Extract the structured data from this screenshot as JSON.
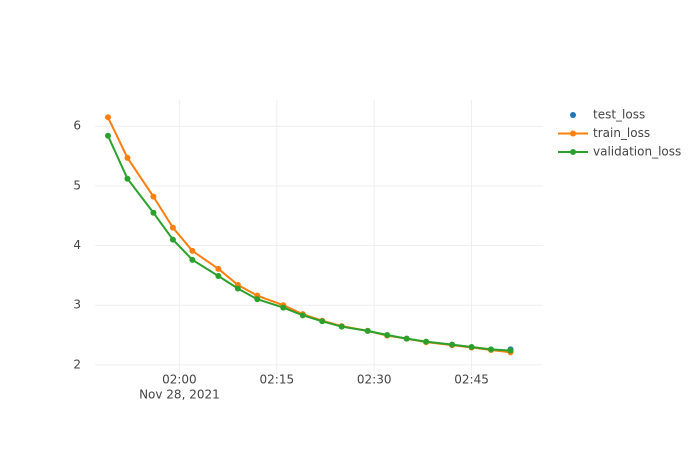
{
  "chart_data": {
    "type": "line",
    "x": [
      "2021-11-28 01:49",
      "2021-11-28 01:52",
      "2021-11-28 01:56",
      "2021-11-28 01:59",
      "2021-11-28 02:02",
      "2021-11-28 02:06",
      "2021-11-28 02:09",
      "2021-11-28 02:12",
      "2021-11-28 02:16",
      "2021-11-28 02:19",
      "2021-11-28 02:22",
      "2021-11-28 02:25",
      "2021-11-28 02:29",
      "2021-11-28 02:32",
      "2021-11-28 02:35",
      "2021-11-28 02:38",
      "2021-11-28 02:42",
      "2021-11-28 02:45",
      "2021-11-28 02:48",
      "2021-11-28 02:51"
    ],
    "series": [
      {
        "name": "test_loss",
        "color": "#1f77b4",
        "mode": "markers",
        "x": [
          "2021-11-28 02:51"
        ],
        "values": [
          2.26
        ]
      },
      {
        "name": "train_loss",
        "color": "#ff7f0e",
        "mode": "lines+markers",
        "values": [
          6.15,
          5.47,
          4.82,
          4.3,
          3.91,
          3.61,
          3.34,
          3.16,
          3.0,
          2.85,
          2.74,
          2.65,
          2.57,
          2.49,
          2.44,
          2.38,
          2.33,
          2.29,
          2.25,
          2.21
        ]
      },
      {
        "name": "validation_loss",
        "color": "#2ca02c",
        "mode": "lines+markers",
        "values": [
          5.84,
          5.12,
          4.55,
          4.1,
          3.76,
          3.49,
          3.28,
          3.1,
          2.96,
          2.83,
          2.73,
          2.64,
          2.57,
          2.5,
          2.44,
          2.39,
          2.34,
          2.3,
          2.26,
          2.24
        ]
      }
    ],
    "xlim": [
      "2021-11-28 01:47",
      "2021-11-28 02:56"
    ],
    "xticks": [
      {
        "value": "2021-11-28 02:00",
        "label": "02:00"
      },
      {
        "value": "2021-11-28 02:15",
        "label": "02:15"
      },
      {
        "value": "2021-11-28 02:30",
        "label": "02:30"
      },
      {
        "value": "2021-11-28 02:45",
        "label": "02:45"
      }
    ],
    "x_date_label": "Nov 28, 2021",
    "ylim": [
      1.83,
      6.44
    ],
    "yticks": [
      2,
      3,
      4,
      5,
      6
    ],
    "grid": true,
    "legend": "right"
  }
}
